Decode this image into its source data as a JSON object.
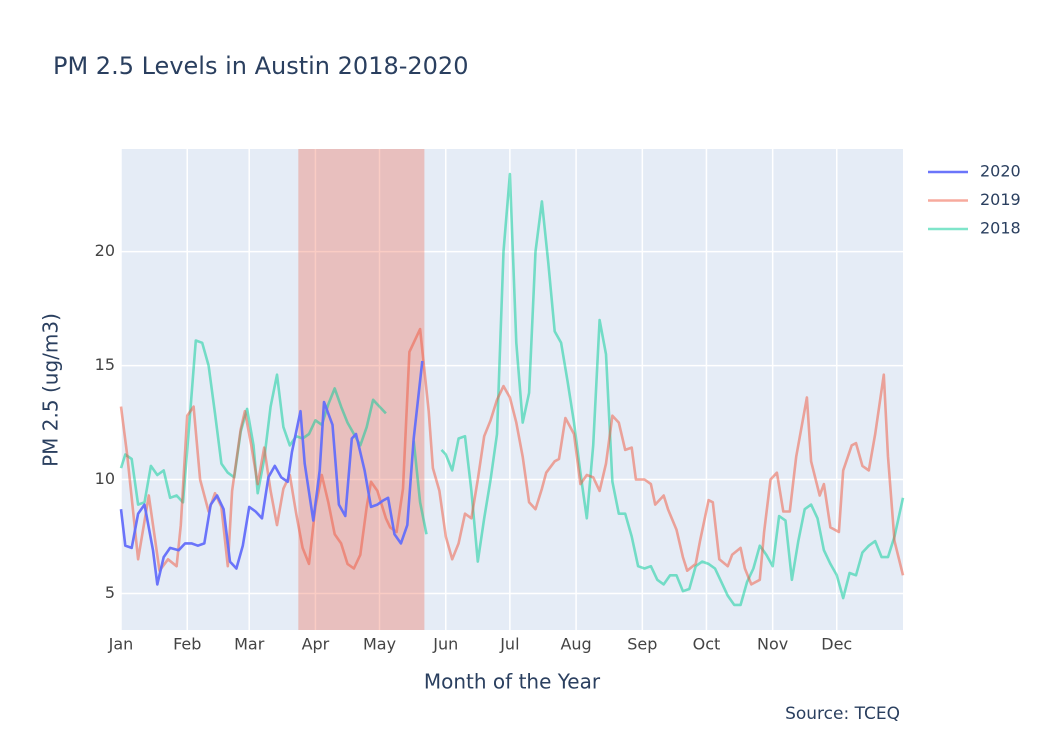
{
  "chart_data": {
    "type": "line",
    "title": "PM 2.5 Levels in Austin 2018-2020",
    "x_label": "Month of the Year",
    "y_label": "PM 2.5 (ug/m3)",
    "source": "Source: TCEQ",
    "xlim": [
      0,
      366
    ],
    "ylim": [
      3.4,
      24.5
    ],
    "xticks": [
      {
        "value": 0,
        "label": "Jan"
      },
      {
        "value": 31,
        "label": "Feb"
      },
      {
        "value": 60,
        "label": "Mar"
      },
      {
        "value": 91,
        "label": "Apr"
      },
      {
        "value": 121,
        "label": "May"
      },
      {
        "value": 152,
        "label": "Jun"
      },
      {
        "value": 182,
        "label": "Jul"
      },
      {
        "value": 213,
        "label": "Aug"
      },
      {
        "value": 244,
        "label": "Sep"
      },
      {
        "value": 274,
        "label": "Oct"
      },
      {
        "value": 305,
        "label": "Nov"
      },
      {
        "value": 335,
        "label": "Dec"
      }
    ],
    "yticks": [
      5,
      10,
      15,
      20
    ],
    "grid": true,
    "legend": "top-right",
    "highlight": {
      "x0": 83,
      "x1": 142,
      "color": "#ef553b",
      "opacity": 0.3
    },
    "series": [
      {
        "name": "2020",
        "color": "#636efa",
        "opacity": 0.95,
        "x": [
          0,
          2,
          5,
          8,
          11,
          15,
          17,
          20,
          23,
          27,
          30,
          33,
          36,
          39,
          42,
          45,
          48,
          51,
          54,
          57,
          60,
          63,
          66,
          69,
          72,
          75,
          78,
          80,
          84,
          86,
          90,
          93,
          95,
          99,
          102,
          105,
          108,
          110,
          114,
          117,
          120,
          123,
          125,
          128,
          131,
          134,
          137,
          141
        ],
        "values": [
          8.7,
          7.1,
          7.0,
          8.5,
          8.9,
          6.9,
          5.4,
          6.6,
          7.0,
          6.9,
          7.2,
          7.2,
          7.1,
          7.2,
          8.9,
          9.3,
          8.7,
          6.4,
          6.1,
          7.1,
          8.8,
          8.6,
          8.3,
          10.1,
          10.6,
          10.1,
          9.9,
          11.2,
          13.0,
          10.7,
          8.2,
          10.4,
          13.4,
          12.4,
          8.9,
          8.4,
          11.8,
          12.0,
          10.4,
          8.8,
          8.9,
          9.1,
          9.2,
          7.6,
          7.2,
          8.0,
          11.8,
          15.2
        ]
      },
      {
        "name": "2019",
        "color": "#ef553b",
        "opacity": 0.5,
        "x": [
          0,
          3,
          8,
          13,
          18,
          22,
          26,
          28,
          31,
          34,
          37,
          41,
          44,
          47,
          50,
          52,
          56,
          58,
          61,
          64,
          67,
          70,
          73,
          76,
          79,
          82,
          85,
          88,
          91,
          94,
          97,
          100,
          103,
          106,
          109,
          112,
          115,
          117,
          120,
          124,
          126,
          129,
          132,
          135,
          140,
          144,
          146,
          149,
          152,
          155,
          158,
          161,
          164,
          167,
          170,
          173,
          176,
          179,
          182,
          185,
          188,
          191,
          194,
          197,
          199,
          203,
          205,
          208,
          212,
          215,
          218,
          221,
          224,
          227,
          230,
          233,
          236,
          239,
          241,
          245,
          248,
          250,
          254,
          256,
          260,
          263,
          265,
          269,
          271,
          275,
          277,
          280,
          284,
          286,
          290,
          292,
          295,
          299,
          301,
          304,
          307,
          310,
          313,
          316,
          321,
          323,
          327,
          329,
          332,
          336,
          338,
          342,
          344,
          347,
          350,
          353,
          357,
          359,
          362,
          366
        ],
        "values": [
          13.2,
          11.0,
          6.5,
          9.3,
          6.0,
          6.5,
          6.2,
          8.0,
          12.8,
          13.2,
          10.0,
          8.6,
          9.4,
          8.8,
          6.2,
          9.5,
          12.2,
          13.0,
          11.5,
          9.8,
          11.4,
          9.5,
          8.0,
          9.6,
          10.2,
          8.5,
          7.0,
          6.3,
          8.8,
          10.2,
          9.0,
          7.6,
          7.2,
          6.3,
          6.1,
          6.7,
          8.8,
          9.9,
          9.5,
          8.3,
          7.9,
          7.7,
          9.6,
          15.6,
          16.6,
          13.0,
          10.5,
          9.5,
          7.5,
          6.5,
          7.2,
          8.5,
          8.3,
          10.0,
          11.9,
          12.6,
          13.5,
          14.1,
          13.6,
          12.5,
          11.0,
          9.0,
          8.7,
          9.6,
          10.3,
          10.8,
          10.9,
          12.7,
          12.0,
          9.8,
          10.2,
          10.1,
          9.5,
          10.7,
          12.8,
          12.5,
          11.3,
          11.4,
          10.0,
          10.0,
          9.8,
          8.9,
          9.3,
          8.7,
          7.8,
          6.6,
          6.0,
          6.3,
          7.3,
          9.1,
          9.0,
          6.5,
          6.2,
          6.7,
          7.0,
          6.1,
          5.4,
          5.6,
          7.7,
          10.0,
          10.3,
          8.6,
          8.6,
          11.0,
          13.6,
          10.8,
          9.3,
          9.8,
          7.9,
          7.7,
          10.4,
          11.5,
          11.6,
          10.6,
          10.4,
          12.0,
          14.6,
          11.0,
          7.3,
          5.8
        ]
      },
      {
        "name": "2018",
        "color": "#00cc96",
        "opacity": 0.5,
        "x": [
          0,
          2,
          5,
          8,
          11,
          14,
          17,
          20,
          23,
          26,
          29,
          32,
          35,
          38,
          41,
          44,
          47,
          50,
          53,
          56,
          59,
          62,
          64,
          67,
          70,
          73,
          76,
          79,
          82,
          85,
          88,
          91,
          94,
          97,
          100,
          103,
          106,
          109,
          112,
          115,
          118,
          121,
          124,
          131,
          137,
          140,
          143,
          146,
          150,
          152,
          155,
          158,
          161,
          164,
          167,
          170,
          173,
          176,
          179,
          182,
          185,
          188,
          191,
          194,
          197,
          200,
          203,
          206,
          209,
          212,
          215,
          218,
          221,
          224,
          227,
          230,
          233,
          236,
          239,
          242,
          245,
          248,
          251,
          254,
          257,
          260,
          263,
          266,
          269,
          272,
          275,
          278,
          281,
          284,
          287,
          290,
          293,
          296,
          299,
          302,
          305,
          308,
          311,
          314,
          317,
          320,
          323,
          326,
          329,
          332,
          335,
          338,
          341,
          344,
          347,
          350,
          353,
          356,
          359,
          362,
          366
        ],
        "values": [
          10.5,
          11.1,
          10.9,
          8.9,
          9.0,
          10.6,
          10.2,
          10.4,
          9.2,
          9.3,
          9.0,
          12.5,
          16.1,
          16.0,
          15.0,
          12.9,
          10.7,
          10.3,
          10.1,
          12.1,
          13.1,
          11.5,
          9.4,
          10.9,
          13.2,
          14.6,
          12.3,
          11.5,
          11.9,
          11.8,
          12.0,
          12.6,
          12.4,
          13.3,
          14.0,
          13.2,
          12.5,
          12.0,
          11.5,
          12.3,
          13.5,
          13.2,
          12.9,
          null,
          11.7,
          9.0,
          7.6,
          null,
          11.3,
          11.1,
          10.4,
          11.8,
          11.9,
          9.5,
          6.4,
          8.3,
          10.0,
          12.0,
          20.0,
          23.4,
          16.0,
          12.5,
          13.8,
          20.0,
          22.2,
          19.5,
          16.5,
          16.0,
          14.3,
          12.5,
          10.3,
          8.3,
          11.5,
          17.0,
          15.5,
          9.9,
          8.5,
          8.5,
          7.5,
          6.2,
          6.1,
          6.2,
          5.6,
          5.4,
          5.8,
          5.8,
          5.1,
          5.2,
          6.2,
          6.4,
          6.3,
          6.1,
          5.5,
          4.9,
          4.5,
          4.5,
          5.5,
          6.1,
          7.1,
          6.7,
          6.2,
          8.4,
          8.2,
          5.6,
          7.3,
          8.7,
          8.9,
          8.3,
          6.9,
          6.3,
          5.8,
          4.8,
          5.9,
          5.8,
          6.8,
          7.1,
          7.3,
          6.6,
          6.6,
          7.5,
          9.2
        ]
      }
    ]
  }
}
